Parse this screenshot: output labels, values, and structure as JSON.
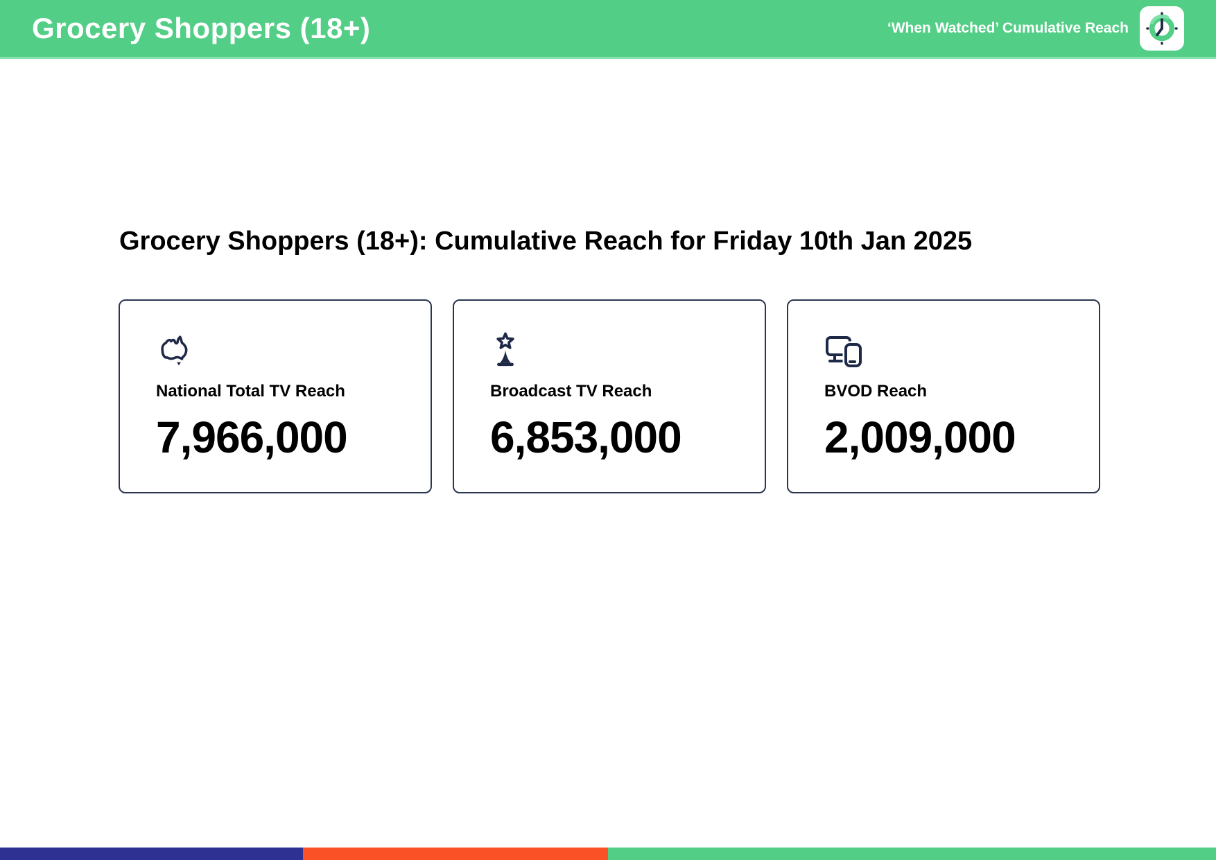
{
  "header": {
    "title": "Grocery Shoppers (18+)",
    "subtitle": "‘When Watched’ Cumulative Reach",
    "icon": "clock-icon"
  },
  "main": {
    "heading": "Grocery Shoppers (18+): Cumulative Reach for Friday 10th Jan 2025",
    "cards": [
      {
        "icon": "australia-map-icon",
        "label": "National Total TV Reach",
        "value": "7,966,000"
      },
      {
        "icon": "broadcast-tower-icon",
        "label": "Broadcast TV Reach",
        "value": "6,853,000"
      },
      {
        "icon": "devices-icon",
        "label": "BVOD Reach",
        "value": "2,009,000"
      }
    ]
  },
  "footer": {
    "segments": [
      {
        "name": "blue-segment",
        "color": "#2E3192",
        "width_pct": 24.9
      },
      {
        "name": "orange-segment",
        "color": "#FB5126",
        "width_pct": 25.1
      },
      {
        "name": "green-segment",
        "color": "#53CE86",
        "width_pct": 50
      }
    ]
  },
  "colors": {
    "header_green": "#53CE86",
    "icon_navy": "#1E2947",
    "card_border": "#2A3550"
  }
}
